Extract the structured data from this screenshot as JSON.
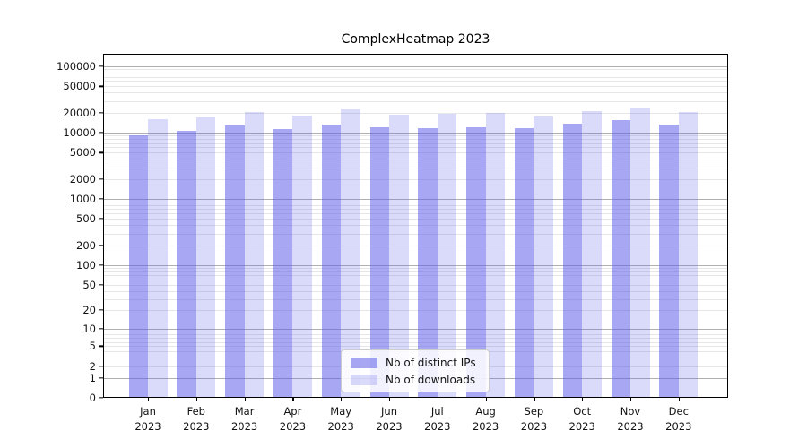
{
  "chart_data": {
    "type": "bar",
    "title": "ComplexHeatmap 2023",
    "xlabel": "",
    "ylabel": "",
    "year": "2023",
    "categories": [
      "Jan",
      "Feb",
      "Mar",
      "Apr",
      "May",
      "Jun",
      "Jul",
      "Aug",
      "Sep",
      "Oct",
      "Nov",
      "Dec"
    ],
    "series": [
      {
        "id": "distinct-ips",
        "name": "Nb of distinct IPs",
        "color": "rgba(88,88,232,0.53)",
        "values": [
          9100,
          10600,
          12700,
          11200,
          13100,
          11900,
          11800,
          12200,
          11600,
          13800,
          15500,
          13100
        ]
      },
      {
        "id": "downloads",
        "name": "Nb of downloads",
        "color": "rgba(88,88,232,0.22)",
        "values": [
          15800,
          17100,
          20500,
          17900,
          22600,
          18500,
          19100,
          19800,
          17500,
          21100,
          23900,
          20500
        ]
      }
    ],
    "yticks": [
      0,
      1,
      2,
      5,
      10,
      20,
      50,
      100,
      200,
      500,
      1000,
      2000,
      5000,
      10000,
      20000,
      50000,
      100000
    ],
    "scale": "log1p",
    "ylim": [
      0,
      158000
    ],
    "grid": "both",
    "grid_major_color": "#b0b0b0",
    "grid_minor_color": "#e6e6e6",
    "axis_color": "#000000",
    "legend_position": "lower center"
  }
}
